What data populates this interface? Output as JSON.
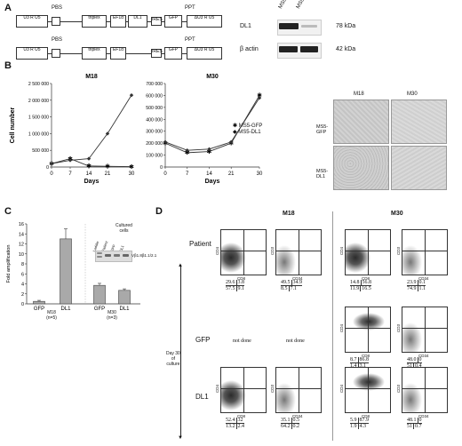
{
  "panels": {
    "a": "A",
    "b": "B",
    "c": "C",
    "d": "D"
  },
  "panel_a": {
    "constructs": [
      {
        "ltr5": "U3 R U5",
        "pbs": "PBS",
        "triplex": "triplex",
        "promoter": "EF1α",
        "gene": "DL1",
        "ires": "IRES",
        "reporter": "GFP",
        "ppt": "PPT",
        "ltr3": "ΔU3 R U5"
      },
      {
        "ltr5": "U3 R U5",
        "pbs": "PBS",
        "triplex": "triplex",
        "promoter": "EF1α",
        "gene": "",
        "ires": "IRES",
        "reporter": "GFP",
        "ppt": "PPT",
        "ltr3": "ΔU3 R U5"
      }
    ],
    "blot": {
      "lanes": [
        "MS5-DL1",
        "MS5-GFP"
      ],
      "rows": [
        {
          "label": "DL1",
          "size": "78 kDa"
        },
        {
          "label": "β actin",
          "size": "42 kDa"
        }
      ]
    }
  },
  "panel_b": {
    "ylabel": "Cell number",
    "legend": [
      "MS5-GFP",
      "MS5-DL1"
    ],
    "micro": {
      "cols": [
        "M18",
        "M30"
      ],
      "rows": [
        "MS5-\nGFP",
        "MS5-\nDL1"
      ]
    }
  },
  "panel_c": {
    "ylabel": "Fold amplification",
    "groups": [
      {
        "name": "M18",
        "n": "(n=5)"
      },
      {
        "name": "M30",
        "n": "(n=3)"
      }
    ],
    "inset_title": "Cultured\ncells",
    "inset_lanes": [
      "Ladder",
      "Patient",
      "GFP",
      "DL1"
    ],
    "inset_ratio": "Vβ1.8β1.1/2.1"
  },
  "panel_d": {
    "col_titles": [
      "M18",
      "M30"
    ],
    "row_labels": [
      "Patient",
      "GFP",
      "DL1"
    ],
    "side_label": "Day 30\nof\nculture",
    "not_done": "not done",
    "axis_labels": {
      "cd8": "CD8",
      "cd34": "CD34",
      "cd4": "CD4",
      "cd3": "CD3"
    },
    "plots": [
      {
        "id": "p-m18-cd8",
        "q": [
          "29.6",
          "3.8",
          "57.5",
          "9.1"
        ]
      },
      {
        "id": "p-m18-cd34",
        "q": [
          "49.5",
          "34.9",
          "8.5",
          "7.1"
        ]
      },
      {
        "id": "p-m30-cd8",
        "q": [
          "14.8",
          "56.8",
          "11.9",
          "16.5"
        ]
      },
      {
        "id": "p-m30-cd34",
        "q": [
          "23.9",
          "0.1",
          "74.9",
          "1.1"
        ]
      },
      {
        "id": "g-m30-cd8",
        "q": [
          "8.7",
          "86.8",
          "1.4",
          "3.1"
        ]
      },
      {
        "id": "g-m30-cd34",
        "q": [
          "48.0",
          "0",
          "51",
          "0.4"
        ]
      },
      {
        "id": "d-m18-cd8",
        "q": [
          "52.4",
          "32",
          "13.2",
          "2.4"
        ]
      },
      {
        "id": "d-m18-cd34",
        "q": [
          "35.1",
          "0.5",
          "64.2",
          "0.2"
        ]
      },
      {
        "id": "d-m30-cd8",
        "q": [
          "5.9",
          "87.9",
          "1.9",
          "4.3"
        ]
      },
      {
        "id": "d-m30-cd34",
        "q": [
          "48.1",
          "0",
          "51",
          "0.7"
        ]
      }
    ]
  },
  "chart_data": [
    {
      "type": "line",
      "title": "M18",
      "xlabel": "Days",
      "ylabel": "Cell number",
      "x": [
        0,
        7,
        14,
        21,
        30
      ],
      "ylim": [
        0,
        2500000
      ],
      "yticks": [
        "0",
        "500 000",
        "1 000 000",
        "1 500 000",
        "2 000 000",
        "2 500 000"
      ],
      "series": [
        {
          "name": "MS5-GFP",
          "values": [
            100000,
            250000,
            30000,
            20000,
            10000
          ]
        },
        {
          "name": "MS5-DL1",
          "values": [
            100000,
            200000,
            250000,
            1000000,
            2150000
          ]
        }
      ]
    },
    {
      "type": "line",
      "title": "M30",
      "xlabel": "Days",
      "ylabel": "",
      "x": [
        0,
        7,
        14,
        21,
        30
      ],
      "ylim": [
        0,
        700000
      ],
      "yticks": [
        "0",
        "100 000",
        "200 000",
        "300 000",
        "400 000",
        "500 000",
        "600 000",
        "700 000"
      ],
      "series": [
        {
          "name": "MS5-GFP",
          "values": [
            200000,
            120000,
            130000,
            200000,
            600000
          ]
        },
        {
          "name": "MS5-DL1",
          "values": [
            210000,
            140000,
            150000,
            210000,
            580000
          ]
        }
      ]
    },
    {
      "type": "bar",
      "title": "",
      "ylabel": "Fold amplification",
      "categories": [
        "GFP",
        "DL1",
        "GFP",
        "DL1"
      ],
      "values": [
        0.5,
        13,
        3.7,
        2.7
      ],
      "errors": [
        0.2,
        2,
        0.4,
        0.3
      ],
      "ylim": [
        0,
        16
      ],
      "yticks": [
        "0",
        "2",
        "4",
        "6",
        "8",
        "10",
        "12",
        "14",
        "16"
      ]
    }
  ]
}
